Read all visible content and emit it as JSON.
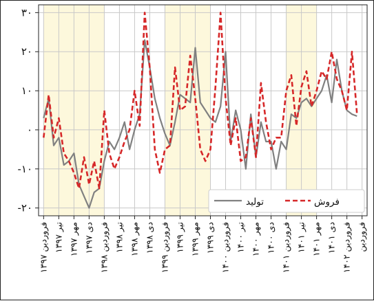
{
  "chart_data": {
    "type": "line",
    "title": "",
    "xlabel": "",
    "ylabel": "",
    "ylim": [
      -22,
      32
    ],
    "yticks": [
      -20,
      -10,
      0,
      10,
      20,
      30
    ],
    "ytick_labels": [
      "-۲۰",
      "-۱۰",
      "۰",
      "۱۰",
      "۲۰",
      "۳۰"
    ],
    "xlim": [
      -1,
      64
    ],
    "xtick_positions": [
      0,
      3,
      6,
      9,
      12,
      15,
      18,
      21,
      24,
      27,
      30,
      33,
      36,
      39,
      42,
      45,
      48,
      51,
      54,
      57,
      60,
      63
    ],
    "xtick_labels": [
      "فروردین ۱۳۹۷",
      "تیر ۱۳۹۷",
      "مهر ۱۳۹۷",
      "دی ۱۳۹۷",
      "فروردین ۱۳۹۸",
      "تیر ۱۳۹۸",
      "مهر ۱۳۹۸",
      "دی ۱۳۹۸",
      "فروردین ۱۳۹۹",
      "تیر ۱۳۹۹",
      "مهر ۱۳۹۹",
      "دی ۱۳۹۹",
      "فروردین ۱۴۰۰",
      "تیر ۱۴۰۰",
      "مهر ۱۴۰۰",
      "دی ۱۴۰۰",
      "فروردین ۱۴۰۱",
      "تیر ۱۴۰۱",
      "مهر ۱۴۰۱",
      "دی ۱۴۰۱",
      "فروردین ۱۴۰۲",
      "فروردین"
    ],
    "shaded_spans": [
      [
        0,
        12
      ],
      [
        24,
        33
      ],
      [
        48,
        54
      ]
    ],
    "grid": true,
    "legend_position": "bottom-right",
    "series": [
      {
        "name": "تولید",
        "color": "#808080",
        "style": "solid",
        "values": [
          3,
          8,
          -4,
          -2,
          -9,
          -8,
          -6,
          -14,
          -17,
          -20,
          -16,
          -15,
          -8,
          -3,
          -5,
          -2,
          2,
          -5,
          0,
          4,
          23,
          16,
          8,
          3,
          -1,
          -4,
          2,
          9,
          8,
          7,
          21,
          7,
          5,
          3,
          2,
          6,
          20,
          -3,
          5,
          0,
          -10,
          4,
          -7,
          2,
          -3,
          -3,
          -10,
          -3,
          -5,
          4,
          3,
          7,
          8,
          6,
          8,
          10,
          14,
          7,
          18,
          10,
          5,
          4,
          3.5
        ]
      },
      {
        "name": "فروش",
        "color": "#d62728",
        "style": "dashed",
        "values": [
          -2,
          9,
          -2,
          3,
          -6,
          -8,
          -11,
          -15,
          -7,
          -14,
          -8,
          -15,
          5,
          -6,
          -10,
          -7,
          -3,
          0,
          10,
          1,
          30,
          16,
          -5,
          -11,
          -5,
          -4,
          16,
          5,
          6,
          19,
          8,
          -5,
          -8,
          -5,
          11,
          30,
          8,
          -4,
          3,
          -8,
          -7,
          3,
          -7,
          12,
          2,
          -5,
          -2,
          -2,
          10,
          14,
          1,
          11,
          15,
          6,
          10,
          15,
          13,
          20,
          13,
          10,
          5,
          20,
          4
        ]
      }
    ]
  }
}
